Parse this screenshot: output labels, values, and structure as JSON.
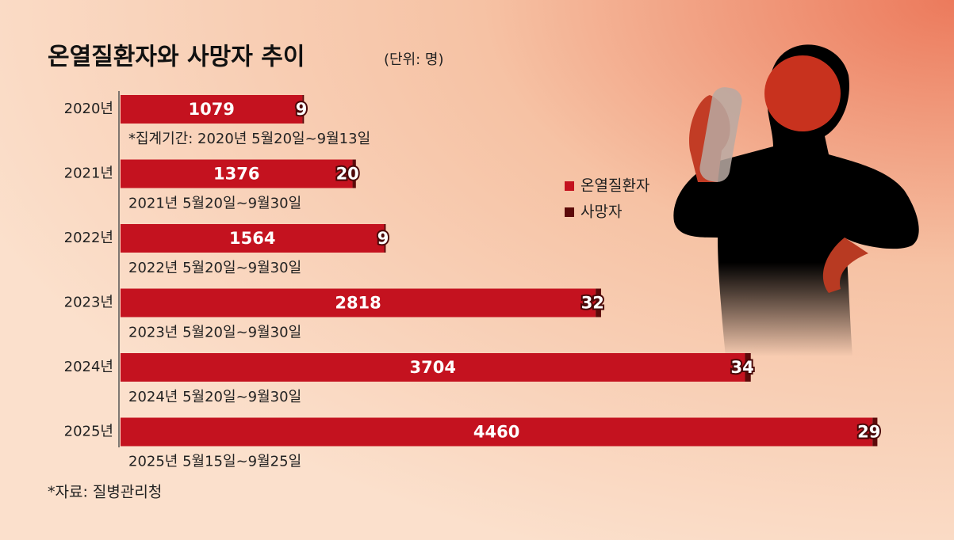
{
  "chart_data": {
    "type": "bar",
    "orientation": "horizontal",
    "stacked": true,
    "title": "온열질환자와 사망자 추이",
    "subtitle": "(단위: 명)",
    "categories": [
      "2020년",
      "2021년",
      "2022년",
      "2023년",
      "2024년",
      "2025년"
    ],
    "notes": [
      "*집계기간: 2020년 5월20일~9월13일",
      "2021년 5월20일~9월30일",
      "2022년 5월20일~9월30일",
      "2023년 5월20일~9월30일",
      "2024년 5월20일~9월30일",
      "2025년 5월15일~9월25일"
    ],
    "series": [
      {
        "name": "온열질환자",
        "color": "#c4121f",
        "values": [
          1079,
          1376,
          1564,
          2818,
          3704,
          4460
        ]
      },
      {
        "name": "사망자",
        "color": "#5c0a0a",
        "values": [
          9,
          20,
          9,
          32,
          34,
          29
        ]
      }
    ],
    "xlim": [
      0,
      4600
    ],
    "source": "*자료: 질병관리청"
  }
}
